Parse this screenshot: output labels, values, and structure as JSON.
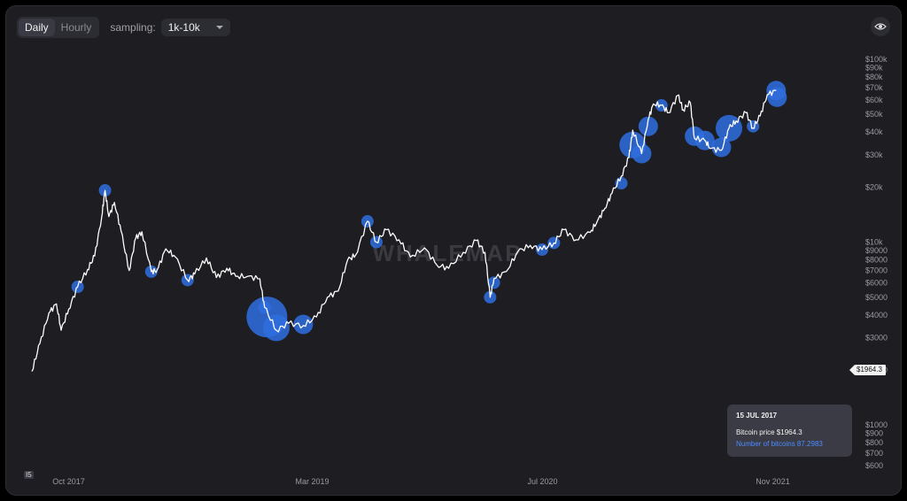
{
  "controls": {
    "timeframes": [
      "Daily",
      "Hourly"
    ],
    "active_timeframe": "Daily",
    "sampling_label": "sampling:",
    "sampling_value": "1k-10k"
  },
  "watermark": "WHALEMAP",
  "tooltip": {
    "date": "15 JUL 2017",
    "price_text": "Bitcoin price $1964.3",
    "count_text": "Number of bitcoins 87.2983"
  },
  "price_tag": "$1964.3",
  "range_marker": "I5",
  "colors": {
    "background": "#1d1d22",
    "line": "#ffffff",
    "bubble": "#2f6fe0",
    "tooltip_count": "#4d8cff"
  },
  "chart_data": {
    "type": "line",
    "scale": "log",
    "ylim": [
      600,
      100000
    ],
    "y_ticks": [
      {
        "label": "$100k",
        "value": 100000
      },
      {
        "label": "$90k",
        "value": 90000
      },
      {
        "label": "$80k",
        "value": 80000
      },
      {
        "label": "$70k",
        "value": 70000
      },
      {
        "label": "$60k",
        "value": 60000
      },
      {
        "label": "$50k",
        "value": 50000
      },
      {
        "label": "$40k",
        "value": 40000
      },
      {
        "label": "$30k",
        "value": 30000
      },
      {
        "label": "$20k",
        "value": 20000
      },
      {
        "label": "$10k",
        "value": 10000
      },
      {
        "label": "$9000",
        "value": 9000
      },
      {
        "label": "$8000",
        "value": 8000
      },
      {
        "label": "$7000",
        "value": 7000
      },
      {
        "label": "$6000",
        "value": 6000
      },
      {
        "label": "$5000",
        "value": 5000
      },
      {
        "label": "$4000",
        "value": 4000
      },
      {
        "label": "$3000",
        "value": 3000
      },
      {
        "label": "$2000",
        "value": 2000
      },
      {
        "label": "$1000",
        "value": 1000
      },
      {
        "label": "$900",
        "value": 900
      },
      {
        "label": "$800",
        "value": 800
      },
      {
        "label": "$700",
        "value": 700
      },
      {
        "label": "$600",
        "value": 600
      }
    ],
    "x_ticks": [
      {
        "label": "Oct 2017",
        "date": "2017-10-01"
      },
      {
        "label": "Mar 2019",
        "date": "2019-03-01"
      },
      {
        "label": "Jul 2020",
        "date": "2020-07-01"
      },
      {
        "label": "Nov 2021",
        "date": "2021-11-01"
      }
    ],
    "xlim": [
      "2017-07-15",
      "2021-11-30"
    ],
    "series": [
      {
        "x": [
          "2017-07-15",
          "2017-08-01",
          "2017-08-20",
          "2017-09-05",
          "2017-09-15",
          "2017-10-01",
          "2017-10-20",
          "2017-11-10",
          "2017-11-25",
          "2017-12-10",
          "2017-12-17",
          "2017-12-25",
          "2018-01-06",
          "2018-01-20",
          "2018-02-06",
          "2018-02-20",
          "2018-03-05",
          "2018-03-25",
          "2018-04-06",
          "2018-04-25",
          "2018-05-15",
          "2018-06-10",
          "2018-06-25",
          "2018-07-20",
          "2018-08-10",
          "2018-09-01",
          "2018-09-20",
          "2018-10-15",
          "2018-11-10",
          "2018-11-20",
          "2018-12-15",
          "2019-01-10",
          "2019-02-10",
          "2019-03-10",
          "2019-04-02",
          "2019-04-25",
          "2019-05-15",
          "2019-06-01",
          "2019-06-26",
          "2019-07-15",
          "2019-08-05",
          "2019-09-01",
          "2019-09-25",
          "2019-10-25",
          "2019-11-20",
          "2019-12-15",
          "2020-01-15",
          "2020-02-12",
          "2020-03-01",
          "2020-03-12",
          "2020-03-20",
          "2020-04-15",
          "2020-05-10",
          "2020-06-05",
          "2020-06-30",
          "2020-07-25",
          "2020-08-15",
          "2020-09-10",
          "2020-10-10",
          "2020-10-25",
          "2020-11-10",
          "2020-11-25",
          "2020-12-15",
          "2020-12-31",
          "2021-01-08",
          "2021-01-27",
          "2021-02-10",
          "2021-02-21",
          "2021-03-10",
          "2021-03-25",
          "2021-04-14",
          "2021-04-25",
          "2021-05-10",
          "2021-05-19",
          "2021-06-10",
          "2021-06-22",
          "2021-07-15",
          "2021-07-31",
          "2021-08-15",
          "2021-09-05",
          "2021-09-20",
          "2021-10-05",
          "2021-10-20",
          "2021-11-08"
        ],
        "values": [
          1964,
          2800,
          4100,
          4600,
          3300,
          4300,
          5700,
          7100,
          8400,
          13800,
          19200,
          13800,
          16500,
          11500,
          7000,
          10500,
          11400,
          6900,
          7000,
          9200,
          8300,
          6200,
          6700,
          8200,
          6400,
          7200,
          6500,
          6500,
          6300,
          4400,
          3300,
          3600,
          3500,
          3900,
          5000,
          5400,
          8000,
          8500,
          13000,
          10000,
          11700,
          10300,
          8300,
          9300,
          7500,
          7200,
          8800,
          10200,
          8800,
          5000,
          6300,
          6900,
          8900,
          9600,
          9100,
          9900,
          11700,
          10300,
          11300,
          13000,
          15300,
          18500,
          23000,
          29000,
          41000,
          30500,
          47000,
          57000,
          56000,
          51000,
          63500,
          53000,
          58000,
          37000,
          36000,
          32500,
          31800,
          42000,
          46000,
          51000,
          42000,
          49000,
          64000,
          67500
        ]
      }
    ],
    "bubbles": [
      {
        "date": "2017-10-20",
        "price": 5700,
        "size": 1
      },
      {
        "date": "2017-12-17",
        "price": 19200,
        "size": 1
      },
      {
        "date": "2018-03-25",
        "price": 6900,
        "size": 1
      },
      {
        "date": "2018-06-10",
        "price": 6200,
        "size": 1
      },
      {
        "date": "2018-11-20",
        "price": 4400,
        "size": 1
      },
      {
        "date": "2018-11-25",
        "price": 3900,
        "size": 5
      },
      {
        "date": "2018-12-15",
        "price": 3400,
        "size": 3
      },
      {
        "date": "2019-02-10",
        "price": 3550,
        "size": 2
      },
      {
        "date": "2019-06-26",
        "price": 13000,
        "size": 1
      },
      {
        "date": "2019-07-15",
        "price": 10000,
        "size": 1
      },
      {
        "date": "2020-03-12",
        "price": 5000,
        "size": 1
      },
      {
        "date": "2020-03-20",
        "price": 6000,
        "size": 1
      },
      {
        "date": "2020-06-30",
        "price": 9100,
        "size": 1
      },
      {
        "date": "2020-07-25",
        "price": 9900,
        "size": 1
      },
      {
        "date": "2020-12-15",
        "price": 21000,
        "size": 1
      },
      {
        "date": "2021-01-08",
        "price": 34000,
        "size": 3
      },
      {
        "date": "2021-01-27",
        "price": 30500,
        "size": 2
      },
      {
        "date": "2021-02-10",
        "price": 43000,
        "size": 2
      },
      {
        "date": "2021-03-10",
        "price": 56000,
        "size": 1
      },
      {
        "date": "2021-05-19",
        "price": 38000,
        "size": 2
      },
      {
        "date": "2021-06-10",
        "price": 36000,
        "size": 2
      },
      {
        "date": "2021-07-15",
        "price": 33000,
        "size": 2
      },
      {
        "date": "2021-07-31",
        "price": 42000,
        "size": 3
      },
      {
        "date": "2021-09-20",
        "price": 43000,
        "size": 1
      },
      {
        "date": "2021-11-08",
        "price": 67500,
        "size": 2
      },
      {
        "date": "2021-11-10",
        "price": 62000,
        "size": 2
      }
    ]
  }
}
